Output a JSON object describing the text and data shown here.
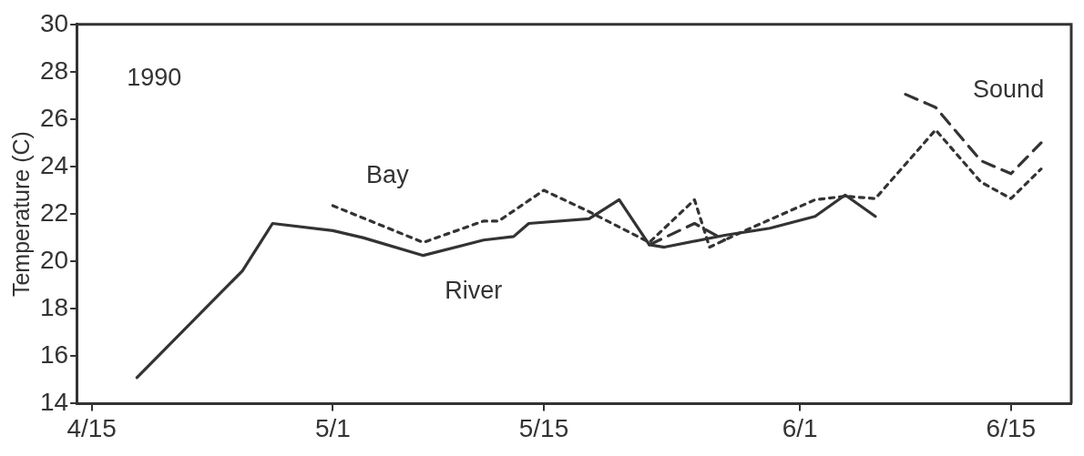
{
  "chart_data": {
    "type": "line",
    "ylabel": "Temperature (C)",
    "annotations": [
      "1990"
    ],
    "xlim": [
      "--04-14",
      "--06-19"
    ],
    "ylim": [
      14,
      30
    ],
    "xticks": [
      {
        "value": "--04-15",
        "label": "4/15"
      },
      {
        "value": "--05-01",
        "label": "5/1"
      },
      {
        "value": "--05-15",
        "label": "5/15"
      },
      {
        "value": "--06-01",
        "label": "6/1"
      },
      {
        "value": "--06-15",
        "label": "6/15"
      }
    ],
    "yticks": [
      14,
      16,
      18,
      20,
      22,
      24,
      26,
      28,
      30
    ],
    "grid": false,
    "legend": false,
    "marker": "none",
    "series": [
      {
        "name": "River",
        "color": "#333333",
        "line_style": "solid",
        "x": [
          "--04-18",
          "--04-25",
          "--04-27",
          "--05-01",
          "--05-03",
          "--05-07",
          "--05-11",
          "--05-13",
          "--05-14",
          "--05-18",
          "--05-20",
          "--05-22",
          "--05-23",
          "--05-27",
          "--05-30",
          "--06-02",
          "--06-04",
          "--06-06"
        ],
        "values": [
          15.1,
          19.6,
          21.6,
          21.3,
          21.0,
          20.25,
          20.9,
          21.05,
          21.6,
          21.8,
          22.6,
          20.7,
          20.6,
          21.1,
          21.4,
          21.9,
          22.8,
          21.9
        ]
      },
      {
        "name": "Bay",
        "color": "#333333",
        "line_style": "dotted",
        "x": [
          "--05-01",
          "--05-07",
          "--05-11",
          "--05-12",
          "--05-15",
          "--05-18",
          "--05-22",
          "--05-25",
          "--05-26",
          "--05-28",
          "--06-02",
          "--06-04",
          "--06-06",
          "--06-10",
          "--06-13",
          "--06-15",
          "--06-17"
        ],
        "values": [
          22.35,
          20.8,
          21.7,
          21.7,
          23.0,
          22.1,
          20.8,
          22.6,
          20.6,
          21.2,
          22.6,
          22.75,
          22.65,
          25.55,
          23.35,
          22.65,
          23.9
        ]
      },
      {
        "name": "Sound",
        "color": "#333333",
        "line_style": "dashed",
        "x": [
          "--05-22",
          "--05-25",
          "--05-27",
          "--06-01",
          "--06-08",
          "--06-10",
          "--06-13",
          "--06-15",
          "--06-17"
        ],
        "values": [
          20.7,
          21.6,
          20.9,
          null,
          27.05,
          26.5,
          24.25,
          23.7,
          25.0
        ]
      }
    ]
  }
}
